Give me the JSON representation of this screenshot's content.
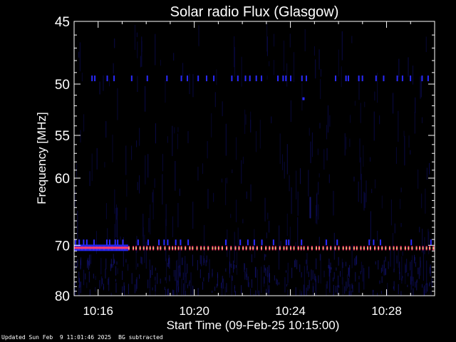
{
  "chart_data": {
    "type": "heatmap",
    "title": "Solar radio Flux (Glasgow)",
    "xlabel": "Start Time (09-Feb-25 10:15:00)",
    "ylabel": "Frequency [MHz]",
    "x_ticks": [
      "10:16",
      "10:20",
      "10:24",
      "10:28"
    ],
    "x_range": [
      "10:15:00",
      "10:30:00"
    ],
    "y_ticks": [
      45,
      50,
      55,
      60,
      70,
      80
    ],
    "y_range": [
      45,
      80
    ],
    "y_scale": "reciprocal",
    "colors": {
      "background": "#000000",
      "low": "#0a0a4a",
      "mid": "#2a2aff",
      "high": "#ff3a6a",
      "peak": "#ffd080"
    },
    "features": [
      {
        "name": "persistent emission band",
        "frequency_mhz": 70.5,
        "start": "10:15:00",
        "end": "10:30:00",
        "intensity": "high"
      },
      {
        "name": "intermittent band",
        "frequency_mhz": 49.5,
        "start": "10:15:00",
        "end": "10:30:00",
        "intensity": "medium"
      },
      {
        "name": "intermittent band",
        "frequency_mhz": 69.5,
        "start": "10:15:00",
        "end": "10:30:00",
        "intensity": "medium"
      },
      {
        "name": "strong broadband segment",
        "frequency_mhz": 70.5,
        "start": "10:15:00",
        "end": "10:17:15",
        "intensity": "very high"
      }
    ]
  },
  "footer": {
    "updated": "Updated Sun Feb  9 11:01:46 2025",
    "note": "BG subtracted"
  }
}
